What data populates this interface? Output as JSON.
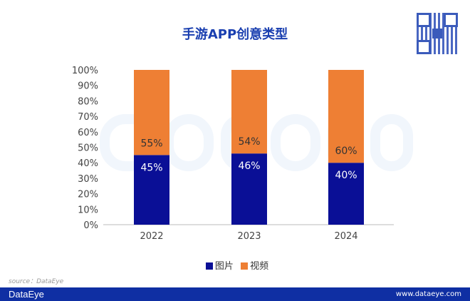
{
  "chart_data": {
    "type": "bar",
    "stacked": true,
    "title": "手游APP创意类型",
    "categories": [
      "2022",
      "2023",
      "2024"
    ],
    "series": [
      {
        "name": "图片",
        "values": [
          45,
          46,
          40
        ],
        "color": "#0a0f96"
      },
      {
        "name": "视频",
        "values": [
          55,
          54,
          60
        ],
        "color": "#ee7f34"
      }
    ],
    "ylim": [
      0,
      100
    ],
    "yticks": [
      "0%",
      "10%",
      "20%",
      "30%",
      "40%",
      "50%",
      "60%",
      "70%",
      "80%",
      "90%",
      "100%"
    ],
    "legend": "bottom",
    "grid": false
  },
  "watermark": "DataEye",
  "source": "source：DataEye",
  "footer": {
    "brand": "DataEye",
    "url": "www.dataeye.com"
  }
}
